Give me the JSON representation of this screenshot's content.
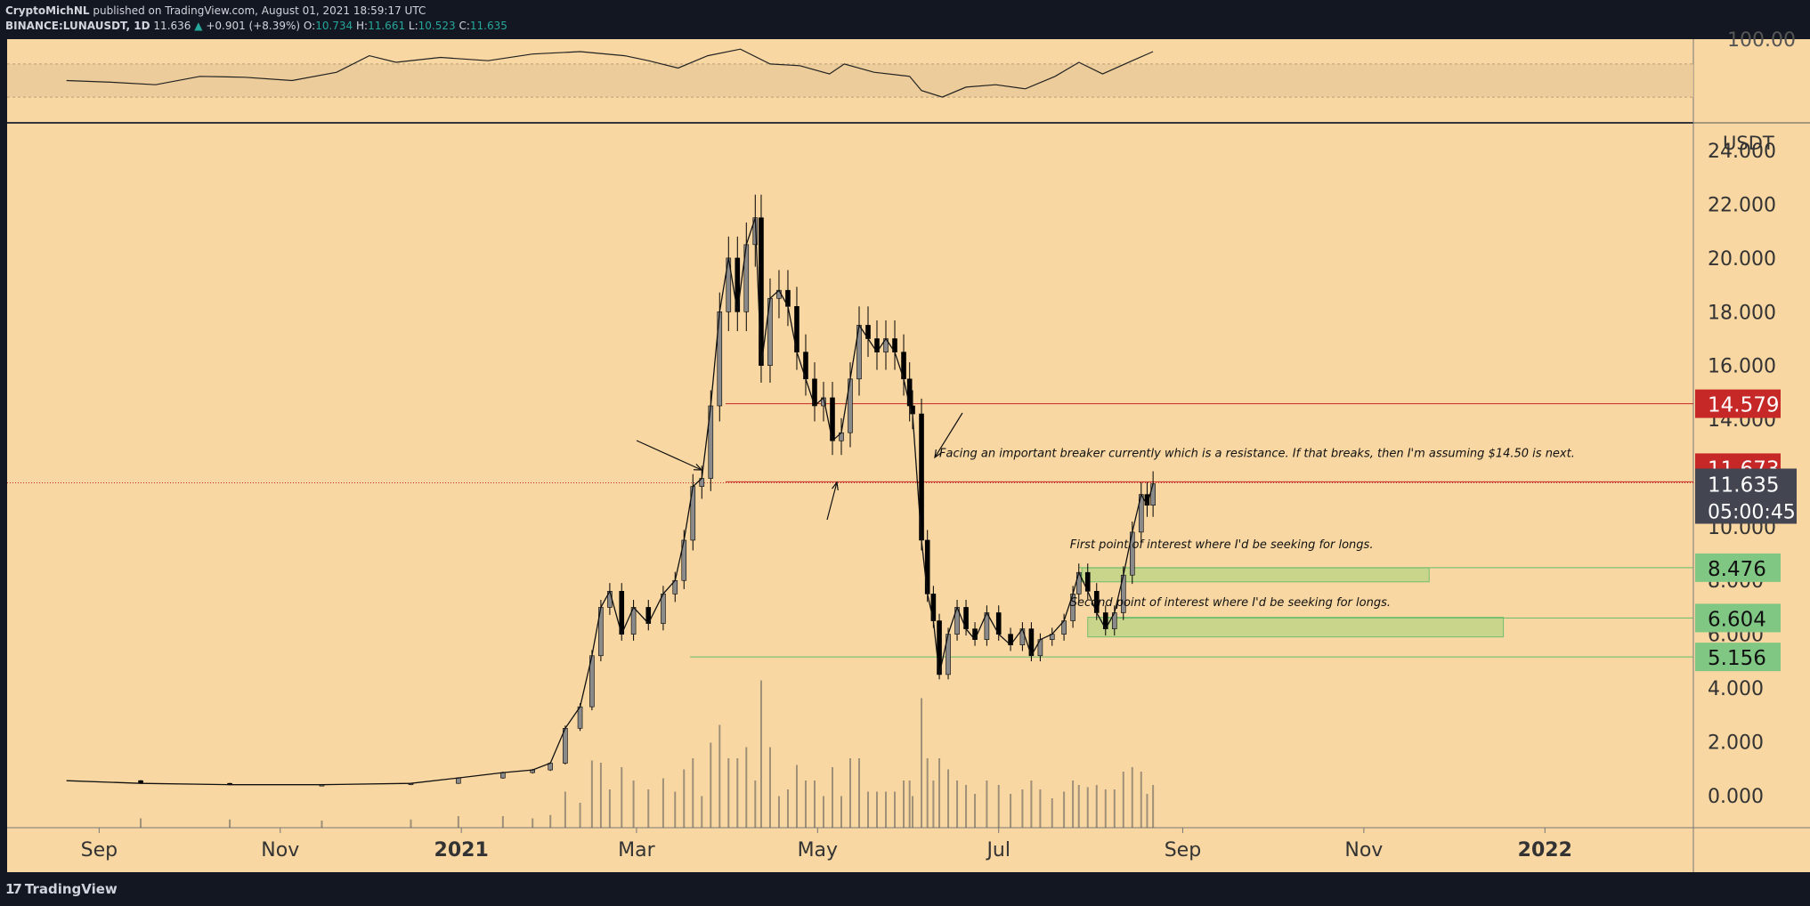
{
  "header": {
    "author": "CryptoMichNL",
    "published": "published on TradingView.com, August 01, 2021 18:59:17 UTC",
    "symbol": "BINANCE:LUNAUSDT, 1D",
    "last": "11.636",
    "change_arrow": "▲",
    "change": "+0.901 (+8.39%)",
    "o_label": "O:",
    "o_value": "10.734",
    "h_label": "H:",
    "h_value": "11.661",
    "l_label": "L:",
    "l_value": "10.523",
    "c_label": "C:",
    "c_value": "11.635"
  },
  "footer": {
    "brand": "TradingView",
    "logo_icon": "tradingview-logo-icon",
    "logo_glyph": "17"
  },
  "colors": {
    "background": "#f8d7a2",
    "frame": "#131722",
    "text": "#d1d4dc",
    "candle": "#000000",
    "candle_up_body": "#8a8a8a",
    "resistance": "#c62828",
    "support_zone": "#c6d58a",
    "support_line": "#66bb6a",
    "tag_red": "#c62828",
    "tag_green": "#81c784",
    "tag_current": "#434651"
  },
  "chart_data": {
    "type": "candlestick",
    "currency_label": "USDT",
    "x_ticks": [
      "Sep",
      "Nov",
      "2021",
      "Mar",
      "May",
      "Jul",
      "Sep",
      "Nov",
      "2022"
    ],
    "y_ticks": [
      "0.000",
      "2.000",
      "4.000",
      "6.000",
      "8.000",
      "10.000",
      "12.000",
      "14.000",
      "16.000",
      "18.000",
      "20.000",
      "22.000",
      "24.000"
    ],
    "ylim": [
      -1.2,
      25
    ],
    "x_range": [
      "2020-08-01",
      "2022-02-20"
    ],
    "price_series": [
      {
        "date": "2020-08-21",
        "close": 0.55
      },
      {
        "date": "2020-09-15",
        "close": 0.45
      },
      {
        "date": "2020-10-15",
        "close": 0.4
      },
      {
        "date": "2020-11-15",
        "close": 0.4
      },
      {
        "date": "2020-12-15",
        "close": 0.45
      },
      {
        "date": "2020-12-31",
        "close": 0.65
      },
      {
        "date": "2021-01-15",
        "close": 0.85
      },
      {
        "date": "2021-01-25",
        "close": 0.95
      },
      {
        "date": "2021-01-31",
        "close": 1.2
      },
      {
        "date": "2021-02-05",
        "close": 2.5
      },
      {
        "date": "2021-02-10",
        "close": 3.3
      },
      {
        "date": "2021-02-14",
        "close": 5.2
      },
      {
        "date": "2021-02-17",
        "close": 7.0
      },
      {
        "date": "2021-02-20",
        "close": 7.6
      },
      {
        "date": "2021-02-24",
        "close": 6.0
      },
      {
        "date": "2021-02-28",
        "close": 7.0
      },
      {
        "date": "2021-03-05",
        "close": 6.4
      },
      {
        "date": "2021-03-10",
        "close": 7.5
      },
      {
        "date": "2021-03-14",
        "close": 8.0
      },
      {
        "date": "2021-03-17",
        "close": 9.5
      },
      {
        "date": "2021-03-20",
        "close": 11.5
      },
      {
        "date": "2021-03-23",
        "close": 11.8
      },
      {
        "date": "2021-03-26",
        "close": 14.5
      },
      {
        "date": "2021-03-29",
        "close": 18.0
      },
      {
        "date": "2021-04-01",
        "close": 20.0
      },
      {
        "date": "2021-04-04",
        "close": 18.0
      },
      {
        "date": "2021-04-07",
        "close": 20.5
      },
      {
        "date": "2021-04-10",
        "close": 21.5
      },
      {
        "date": "2021-04-12",
        "close": 16.0
      },
      {
        "date": "2021-04-15",
        "close": 18.5
      },
      {
        "date": "2021-04-18",
        "close": 18.8
      },
      {
        "date": "2021-04-21",
        "close": 18.2
      },
      {
        "date": "2021-04-24",
        "close": 16.5
      },
      {
        "date": "2021-04-27",
        "close": 15.5
      },
      {
        "date": "2021-04-30",
        "close": 14.5
      },
      {
        "date": "2021-05-03",
        "close": 14.8
      },
      {
        "date": "2021-05-06",
        "close": 13.2
      },
      {
        "date": "2021-05-09",
        "close": 13.5
      },
      {
        "date": "2021-05-12",
        "close": 15.5
      },
      {
        "date": "2021-05-15",
        "close": 17.5
      },
      {
        "date": "2021-05-18",
        "close": 17.0
      },
      {
        "date": "2021-05-21",
        "close": 16.5
      },
      {
        "date": "2021-05-24",
        "close": 17.0
      },
      {
        "date": "2021-05-27",
        "close": 16.5
      },
      {
        "date": "2021-05-30",
        "close": 15.5
      },
      {
        "date": "2021-06-01",
        "close": 14.5
      },
      {
        "date": "2021-06-02",
        "close": 14.2
      },
      {
        "date": "2021-06-05",
        "close": 9.5
      },
      {
        "date": "2021-06-07",
        "close": 7.5
      },
      {
        "date": "2021-06-09",
        "close": 6.5
      },
      {
        "date": "2021-06-11",
        "close": 4.5
      },
      {
        "date": "2021-06-14",
        "close": 6.0
      },
      {
        "date": "2021-06-17",
        "close": 7.0
      },
      {
        "date": "2021-06-20",
        "close": 6.2
      },
      {
        "date": "2021-06-23",
        "close": 5.8
      },
      {
        "date": "2021-06-27",
        "close": 6.8
      },
      {
        "date": "2021-07-01",
        "close": 6.0
      },
      {
        "date": "2021-07-05",
        "close": 5.6
      },
      {
        "date": "2021-07-09",
        "close": 6.2
      },
      {
        "date": "2021-07-12",
        "close": 5.2
      },
      {
        "date": "2021-07-15",
        "close": 5.8
      },
      {
        "date": "2021-07-19",
        "close": 6.0
      },
      {
        "date": "2021-07-23",
        "close": 6.5
      },
      {
        "date": "2021-07-26",
        "close": 7.5
      },
      {
        "date": "2021-07-28",
        "close": 8.3
      },
      {
        "date": "2021-07-31",
        "close": 7.6
      },
      {
        "date": "2021-08-03",
        "close": 6.8
      },
      {
        "date": "2021-08-06",
        "close": 6.2
      },
      {
        "date": "2021-08-09",
        "close": 6.8
      },
      {
        "date": "2021-08-12",
        "close": 8.2
      },
      {
        "date": "2021-08-15",
        "close": 9.8
      },
      {
        "date": "2021-08-18",
        "close": 11.2
      },
      {
        "date": "2021-08-20",
        "close": 10.8
      },
      {
        "date": "2021-08-22",
        "close": 11.6
      }
    ],
    "levels": [
      {
        "name": "resistance-14579",
        "value": 14.579,
        "label": "14.579",
        "color": "#c62828"
      },
      {
        "name": "resistance-11673",
        "value": 11.673,
        "label": "11.673",
        "color": "#c62828"
      },
      {
        "name": "support-8476",
        "value": 8.476,
        "label": "8.476",
        "color": "#81c784"
      },
      {
        "name": "support-6604",
        "value": 6.604,
        "label": "6.604",
        "color": "#81c784"
      },
      {
        "name": "support-5156",
        "value": 5.156,
        "label": "5.156",
        "color": "#81c784"
      }
    ],
    "current": {
      "value": 11.635,
      "label": "11.635",
      "countdown": "05:00:45"
    },
    "zones": [
      {
        "name": "zone-first-poi",
        "from": "2021-07-29",
        "to": "2021-11-23",
        "low": 7.95,
        "high": 8.47
      },
      {
        "name": "zone-second-poi",
        "from": "2021-07-31",
        "to": "2021-12-18",
        "low": 5.9,
        "high": 6.63
      }
    ],
    "annotations": [
      {
        "name": "note-resistance",
        "text": "Facing an important breaker currently which is a resistance. If that breaks, then I'm assuming $14.50 is next.",
        "date": "2021-06-11",
        "price": 12.6
      },
      {
        "name": "note-first-poi",
        "text": "First point of interest where I'd be seeking for longs.",
        "date": "2021-07-25",
        "price": 9.2
      },
      {
        "name": "note-second-poi",
        "text": "Second point of interest where I'd be seeking for longs.",
        "date": "2021-07-25",
        "price": 7.05
      }
    ],
    "rsi": {
      "ylim": [
        0,
        100
      ],
      "band": [
        30,
        70
      ],
      "y_tick": "100.00",
      "series": [
        {
          "date": "2020-08-21",
          "value": 50
        },
        {
          "date": "2020-09-05",
          "value": 48
        },
        {
          "date": "2020-09-20",
          "value": 45
        },
        {
          "date": "2020-10-05",
          "value": 55
        },
        {
          "date": "2020-10-20",
          "value": 54
        },
        {
          "date": "2020-11-05",
          "value": 50
        },
        {
          "date": "2020-11-20",
          "value": 60
        },
        {
          "date": "2020-12-01",
          "value": 80
        },
        {
          "date": "2020-12-10",
          "value": 72
        },
        {
          "date": "2020-12-25",
          "value": 78
        },
        {
          "date": "2021-01-10",
          "value": 74
        },
        {
          "date": "2021-01-25",
          "value": 82
        },
        {
          "date": "2021-02-10",
          "value": 85
        },
        {
          "date": "2021-02-25",
          "value": 80
        },
        {
          "date": "2021-03-05",
          "value": 74
        },
        {
          "date": "2021-03-15",
          "value": 65
        },
        {
          "date": "2021-03-25",
          "value": 80
        },
        {
          "date": "2021-04-05",
          "value": 88
        },
        {
          "date": "2021-04-15",
          "value": 70
        },
        {
          "date": "2021-04-25",
          "value": 68
        },
        {
          "date": "2021-05-05",
          "value": 58
        },
        {
          "date": "2021-05-10",
          "value": 70
        },
        {
          "date": "2021-05-20",
          "value": 60
        },
        {
          "date": "2021-06-01",
          "value": 55
        },
        {
          "date": "2021-06-05",
          "value": 38
        },
        {
          "date": "2021-06-12",
          "value": 30
        },
        {
          "date": "2021-06-20",
          "value": 42
        },
        {
          "date": "2021-06-30",
          "value": 45
        },
        {
          "date": "2021-07-10",
          "value": 40
        },
        {
          "date": "2021-07-20",
          "value": 55
        },
        {
          "date": "2021-07-28",
          "value": 72
        },
        {
          "date": "2021-08-05",
          "value": 58
        },
        {
          "date": "2021-08-15",
          "value": 74
        },
        {
          "date": "2021-08-22",
          "value": 85
        }
      ]
    }
  }
}
